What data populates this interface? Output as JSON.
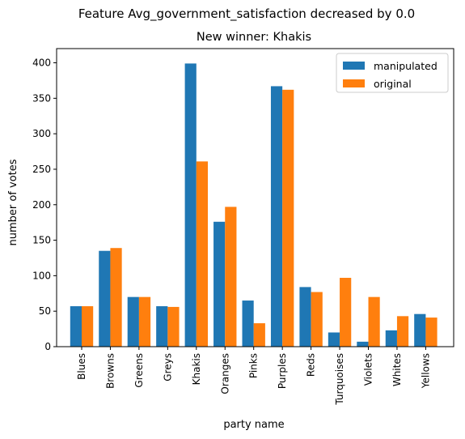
{
  "suptitle": "Feature Avg_government_satisfaction decreased by 0.0",
  "chart_data": {
    "type": "bar",
    "title": "New winner: Khakis",
    "xlabel": "party name",
    "ylabel": "number of votes",
    "ylim": [
      0,
      420
    ],
    "yticks": [
      0,
      50,
      100,
      150,
      200,
      250,
      300,
      350,
      400
    ],
    "categories": [
      "Blues",
      "Browns",
      "Greens",
      "Greys",
      "Khakis",
      "Oranges",
      "Pinks",
      "Purples",
      "Reds",
      "Turquoises",
      "Violets",
      "Whites",
      "Yellows"
    ],
    "series": [
      {
        "name": "manipulated",
        "color": "#1f77b4",
        "values": [
          57,
          135,
          70,
          57,
          399,
          176,
          65,
          367,
          84,
          20,
          7,
          23,
          46
        ]
      },
      {
        "name": "original",
        "color": "#ff7f0e",
        "values": [
          57,
          139,
          70,
          56,
          261,
          197,
          33,
          362,
          77,
          97,
          70,
          43,
          41
        ]
      }
    ],
    "legend_position": "top-right",
    "grid": false
  }
}
